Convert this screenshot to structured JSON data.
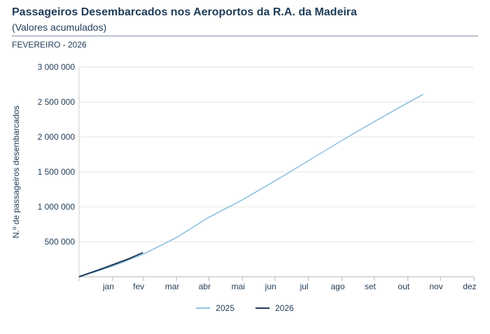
{
  "header": {
    "title": "Passageiros Desembarcados nos Aeroportos da R.A. da Madeira",
    "subtitle": "(Valores acumulados)",
    "period": "FEVEREIRO - 2026"
  },
  "colors": {
    "series_2025": "#8fc3df",
    "series_2026": "#1f3b57",
    "grid": "#e3e3e3"
  },
  "chart_data": {
    "type": "line",
    "ylabel": "N.º de passageiros desembarcados",
    "ylim": [
      0,
      3000000
    ],
    "yticks": [
      500000,
      1000000,
      1500000,
      2000000,
      2500000,
      3000000
    ],
    "ytick_labels": [
      "500 000",
      "1 000 000",
      "1 500 000",
      "2 000 000",
      "2 500 000",
      "3 000 000"
    ],
    "months": [
      "jan",
      "fev",
      "mar",
      "abr",
      "mai",
      "jun",
      "jul",
      "ago",
      "set",
      "out",
      "nov",
      "dez"
    ],
    "xlim_days": [
      0,
      365
    ],
    "grid": true,
    "legend_placement": "bottom-center",
    "series": [
      {
        "name": "2025",
        "x_day": [
          0,
          31,
          59,
          90,
          120,
          151,
          181,
          212,
          243,
          273,
          304,
          318
        ],
        "y": [
          0,
          150000,
          320000,
          560000,
          850000,
          1100000,
          1370000,
          1660000,
          1950000,
          2220000,
          2490000,
          2610000
        ]
      },
      {
        "name": "2026",
        "x_day": [
          0,
          15,
          31,
          45,
          59
        ],
        "y": [
          0,
          80000,
          170000,
          250000,
          345000
        ]
      }
    ]
  }
}
